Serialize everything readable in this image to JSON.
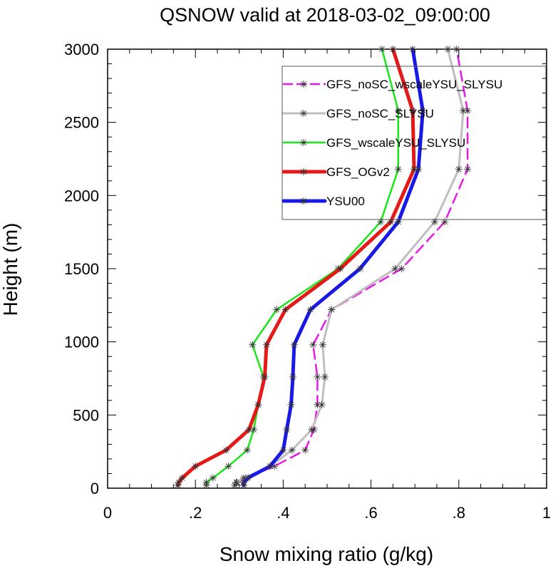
{
  "chart_data": {
    "type": "line",
    "title": "QSNOW valid at 2018-03-02_09:00:00",
    "xlabel": "Snow mixing ratio (g/kg)",
    "ylabel": "Height (m)",
    "xlim": [
      0,
      1
    ],
    "ylim": [
      0,
      3000
    ],
    "x_ticks": [
      0,
      0.2,
      0.4,
      0.6,
      0.8,
      1
    ],
    "x_tick_labels": [
      "0",
      ".2",
      ".4",
      ".6",
      ".8",
      "1"
    ],
    "y_ticks": [
      0,
      500,
      1000,
      1500,
      2000,
      2500,
      3000
    ],
    "y_tick_labels": [
      "0",
      "500",
      "1000",
      "1500",
      "2000",
      "2500",
      "3000"
    ],
    "legend_position": "top-right",
    "series": [
      {
        "name": "GFS_noSC_wscaleYSU_SLYSU",
        "color": "#e619e6",
        "dash": true,
        "points": [
          [
            0.29,
            20
          ],
          [
            0.295,
            40
          ],
          [
            0.315,
            70
          ],
          [
            0.38,
            150
          ],
          [
            0.45,
            260
          ],
          [
            0.47,
            400
          ],
          [
            0.478,
            570
          ],
          [
            0.478,
            760
          ],
          [
            0.468,
            980
          ],
          [
            0.51,
            1220
          ],
          [
            0.67,
            1500
          ],
          [
            0.768,
            1820
          ],
          [
            0.82,
            2180
          ],
          [
            0.82,
            2580
          ],
          [
            0.795,
            3000
          ]
        ]
      },
      {
        "name": "GFS_noSC_SLYSU",
        "color": "#bfbfbf",
        "dash": false,
        "points": [
          [
            0.29,
            20
          ],
          [
            0.293,
            40
          ],
          [
            0.31,
            70
          ],
          [
            0.37,
            150
          ],
          [
            0.42,
            260
          ],
          [
            0.465,
            400
          ],
          [
            0.488,
            570
          ],
          [
            0.495,
            760
          ],
          [
            0.49,
            980
          ],
          [
            0.51,
            1220
          ],
          [
            0.655,
            1500
          ],
          [
            0.745,
            1820
          ],
          [
            0.8,
            2180
          ],
          [
            0.81,
            2580
          ],
          [
            0.775,
            3000
          ]
        ]
      },
      {
        "name": "GFS_wscaleYSU_SLYSU",
        "color": "#19e619",
        "dash": false,
        "points": [
          [
            0.225,
            20
          ],
          [
            0.225,
            40
          ],
          [
            0.24,
            70
          ],
          [
            0.275,
            150
          ],
          [
            0.318,
            260
          ],
          [
            0.333,
            400
          ],
          [
            0.343,
            570
          ],
          [
            0.355,
            760
          ],
          [
            0.33,
            980
          ],
          [
            0.385,
            1220
          ],
          [
            0.525,
            1500
          ],
          [
            0.622,
            1820
          ],
          [
            0.662,
            2180
          ],
          [
            0.662,
            2580
          ],
          [
            0.625,
            3000
          ]
        ]
      },
      {
        "name": "GFS_OGv2",
        "color": "#e61919",
        "dash": false,
        "points": [
          [
            0.16,
            20
          ],
          [
            0.162,
            40
          ],
          [
            0.17,
            70
          ],
          [
            0.2,
            150
          ],
          [
            0.27,
            260
          ],
          [
            0.322,
            400
          ],
          [
            0.343,
            570
          ],
          [
            0.358,
            760
          ],
          [
            0.362,
            980
          ],
          [
            0.405,
            1220
          ],
          [
            0.53,
            1500
          ],
          [
            0.645,
            1820
          ],
          [
            0.698,
            2180
          ],
          [
            0.695,
            2580
          ],
          [
            0.65,
            3000
          ]
        ]
      },
      {
        "name": "YSU00",
        "color": "#1919e6",
        "dash": false,
        "points": [
          [
            0.31,
            20
          ],
          [
            0.31,
            40
          ],
          [
            0.32,
            70
          ],
          [
            0.37,
            150
          ],
          [
            0.4,
            260
          ],
          [
            0.408,
            400
          ],
          [
            0.418,
            570
          ],
          [
            0.422,
            760
          ],
          [
            0.425,
            980
          ],
          [
            0.462,
            1220
          ],
          [
            0.575,
            1500
          ],
          [
            0.662,
            1820
          ],
          [
            0.708,
            2180
          ],
          [
            0.718,
            2580
          ],
          [
            0.695,
            3000
          ]
        ]
      }
    ]
  }
}
